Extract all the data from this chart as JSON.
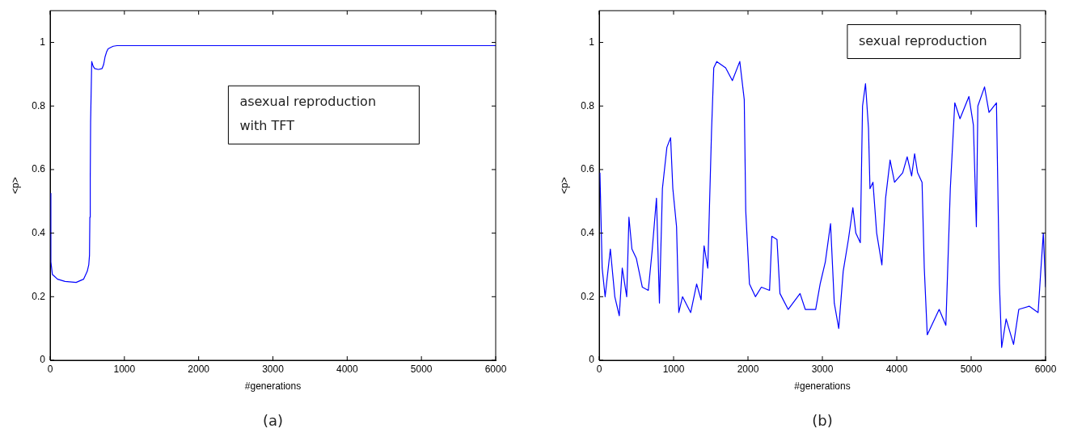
{
  "chart_data": [
    {
      "type": "line",
      "xlabel": "#generations",
      "ylabel": "<p>",
      "annotations": [
        "asexual reproduction with TFT",
        "(a)"
      ],
      "xlim": [
        0,
        6000
      ],
      "xticks": [
        0,
        1000,
        2000,
        3000,
        4000,
        5000,
        6000
      ],
      "ylim": [
        0,
        1.1
      ],
      "yticks": [
        0,
        0.2,
        0.4,
        0.6,
        0.8,
        1
      ],
      "grid": false,
      "legend": false,
      "marker": "none",
      "series": [
        {
          "color": "#0000ff",
          "x": [
            4,
            10,
            30,
            100,
            200,
            350,
            450,
            500,
            520,
            530,
            535,
            540,
            545,
            560,
            580,
            600,
            650,
            700,
            720,
            740,
            760,
            780,
            820,
            850,
            900,
            1000,
            2000,
            3000,
            4000,
            5000,
            6000
          ],
          "values": [
            0.525,
            0.31,
            0.27,
            0.255,
            0.248,
            0.245,
            0.255,
            0.28,
            0.3,
            0.33,
            0.45,
            0.57,
            0.75,
            0.94,
            0.925,
            0.918,
            0.915,
            0.918,
            0.93,
            0.955,
            0.97,
            0.98,
            0.985,
            0.988,
            0.99,
            0.99,
            0.99,
            0.99,
            0.99,
            0.99,
            0.99
          ]
        }
      ]
    },
    {
      "type": "line",
      "xlabel": "#generations",
      "ylabel": "<p>",
      "annotations": [
        "sexual reproduction",
        "(b)"
      ],
      "xlim": [
        0,
        6000
      ],
      "xticks": [
        0,
        1000,
        2000,
        3000,
        4000,
        5000,
        6000
      ],
      "ylim": [
        0,
        1.1
      ],
      "yticks": [
        0,
        0.2,
        0.4,
        0.6,
        0.8,
        1
      ],
      "grid": false,
      "legend": false,
      "marker": "none",
      "series": [
        {
          "color": "#0000ff",
          "x": [
            10,
            40,
            80,
            150,
            210,
            270,
            310,
            370,
            400,
            440,
            500,
            580,
            660,
            710,
            770,
            810,
            850,
            910,
            960,
            990,
            1040,
            1070,
            1120,
            1230,
            1310,
            1370,
            1410,
            1460,
            1510,
            1540,
            1580,
            1700,
            1790,
            1890,
            1950,
            1970,
            2020,
            2100,
            2180,
            2290,
            2320,
            2390,
            2430,
            2540,
            2700,
            2770,
            2910,
            2970,
            3040,
            3110,
            3160,
            3220,
            3280,
            3350,
            3410,
            3450,
            3510,
            3540,
            3580,
            3620,
            3640,
            3680,
            3730,
            3800,
            3850,
            3910,
            3970,
            4080,
            4140,
            4200,
            4240,
            4280,
            4340,
            4370,
            4410,
            4490,
            4570,
            4660,
            4720,
            4780,
            4850,
            4970,
            5030,
            5070,
            5090,
            5180,
            5240,
            5340,
            5380,
            5410,
            5470,
            5570,
            5640,
            5780,
            5900,
            5930,
            5970,
            6000
          ],
          "values": [
            0.59,
            0.29,
            0.2,
            0.35,
            0.2,
            0.14,
            0.29,
            0.2,
            0.45,
            0.35,
            0.32,
            0.23,
            0.22,
            0.34,
            0.51,
            0.18,
            0.54,
            0.67,
            0.7,
            0.54,
            0.42,
            0.15,
            0.2,
            0.15,
            0.24,
            0.19,
            0.36,
            0.29,
            0.72,
            0.92,
            0.94,
            0.92,
            0.88,
            0.94,
            0.82,
            0.47,
            0.24,
            0.2,
            0.23,
            0.22,
            0.39,
            0.38,
            0.21,
            0.16,
            0.21,
            0.16,
            0.16,
            0.24,
            0.31,
            0.43,
            0.18,
            0.1,
            0.28,
            0.38,
            0.48,
            0.4,
            0.37,
            0.8,
            0.87,
            0.73,
            0.54,
            0.56,
            0.4,
            0.3,
            0.51,
            0.63,
            0.56,
            0.59,
            0.64,
            0.58,
            0.65,
            0.59,
            0.56,
            0.29,
            0.08,
            0.12,
            0.16,
            0.11,
            0.54,
            0.81,
            0.76,
            0.83,
            0.74,
            0.42,
            0.8,
            0.86,
            0.78,
            0.81,
            0.24,
            0.04,
            0.13,
            0.05,
            0.16,
            0.17,
            0.15,
            0.26,
            0.4,
            0.23
          ]
        }
      ]
    }
  ]
}
